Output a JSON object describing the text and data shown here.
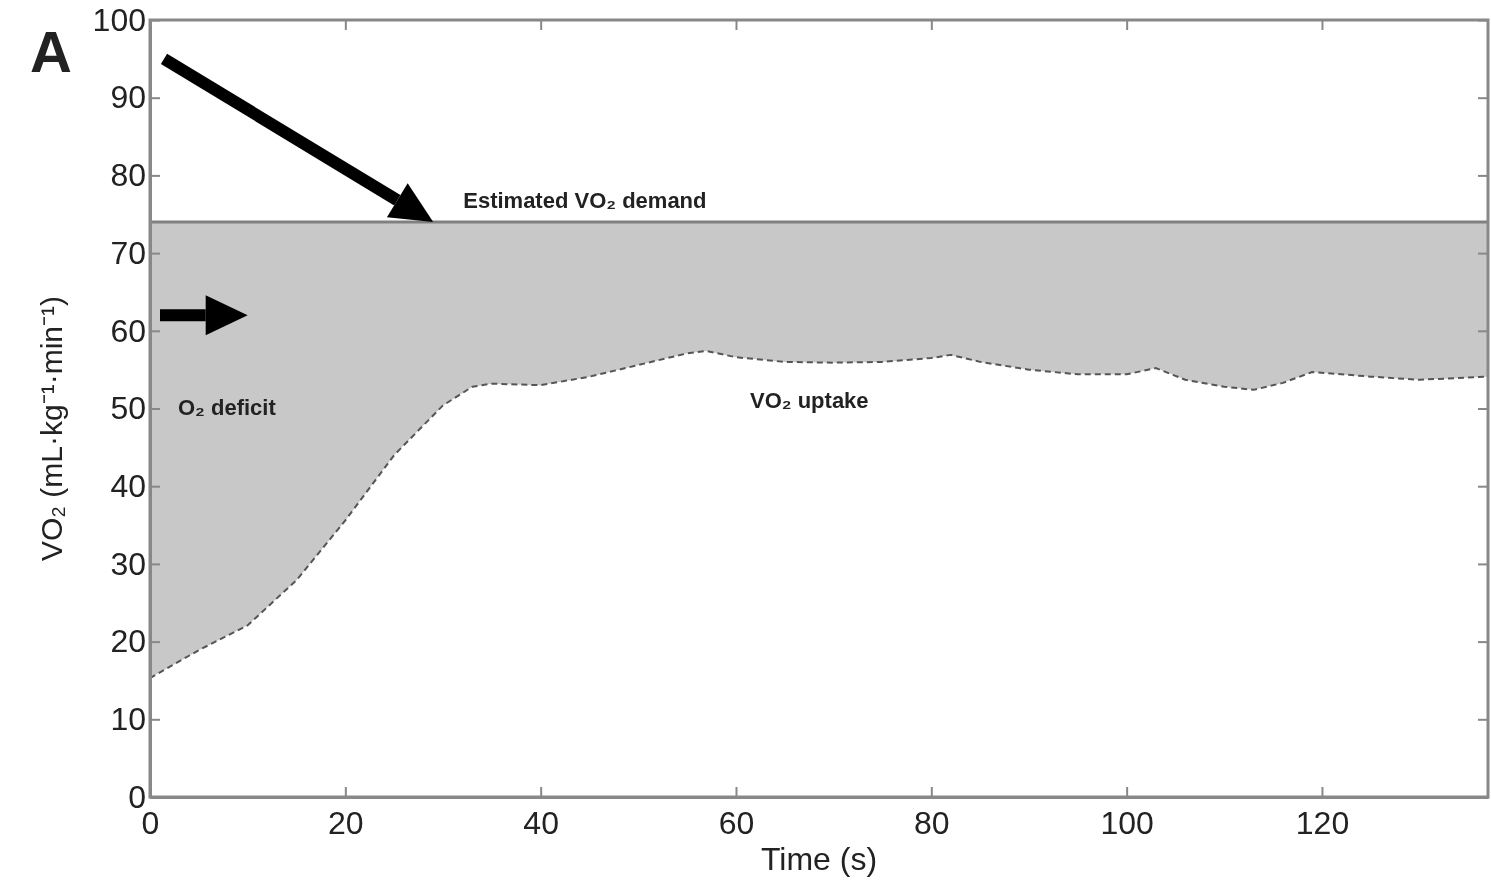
{
  "chart_data": {
    "type": "line",
    "xlabel": "Time (s)",
    "ylabel": "VO₂ (mL·kg⁻¹·min⁻¹)",
    "x": [
      0,
      5,
      10,
      15,
      20,
      25,
      30,
      33,
      35,
      40,
      45,
      50,
      55,
      57,
      60,
      65,
      70,
      75,
      80,
      82,
      85,
      90,
      95,
      100,
      103,
      106,
      110,
      113,
      116,
      119,
      125,
      130,
      137
    ],
    "series": [
      {
        "color": "#555555",
        "line_style": "dashed",
        "values": [
          15.3,
          18.9,
          22.1,
          27.9,
          35.6,
          44.0,
          50.4,
          52.8,
          53.2,
          53.0,
          54.1,
          55.6,
          57.1,
          57.4,
          56.6,
          56.0,
          55.9,
          56.0,
          56.5,
          56.9,
          56.0,
          55.0,
          54.4,
          54.4,
          55.2,
          53.7,
          52.8,
          52.4,
          53.3,
          54.7,
          54.1,
          53.7,
          54.1
        ]
      }
    ],
    "ref_lines": [
      {
        "axis": "y",
        "value": 74,
        "label": "Estimated VO₂ demand",
        "color": "#808080"
      }
    ],
    "xlim": [
      0,
      137
    ],
    "xticks": [
      0,
      20,
      40,
      60,
      80,
      100,
      120
    ],
    "ylim": [
      0,
      100
    ],
    "yticks": [
      0,
      10,
      20,
      30,
      40,
      50,
      60,
      70,
      80,
      90,
      100
    ],
    "annotations": [
      "A",
      "O₂ deficit",
      "VO₂ uptake"
    ]
  }
}
